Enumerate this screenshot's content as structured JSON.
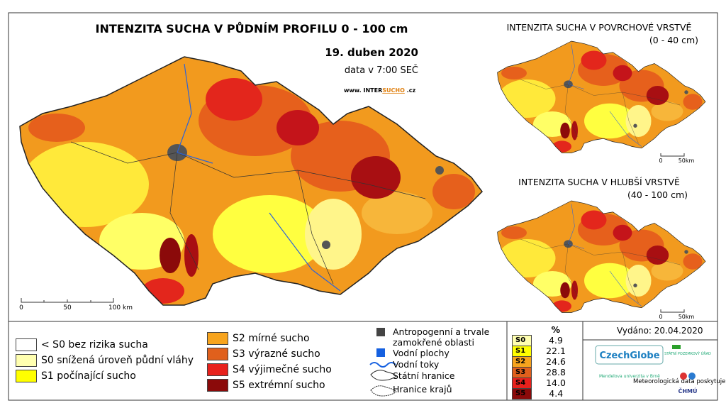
{
  "header": {
    "title": "INTENZITA SUCHA V PŮDNÍM PROFILU 0 - 100 cm",
    "date": "19. duben 2020",
    "time": "data v 7:00 SEČ",
    "website": {
      "prefix": "www. INTER",
      "highlight": "SUCHO",
      "suffix": ".cz"
    }
  },
  "main_scale": [
    "0",
    "50",
    "100 km"
  ],
  "insets": [
    {
      "title": "INTENZITA SUCHA V POVRCHOVÉ VRSTVĚ",
      "subtitle": "(0 - 40 cm)",
      "scale": [
        "0",
        "50km"
      ]
    },
    {
      "title": "INTENZITA SUCHA V HLUBŠÍ VRSTVĚ",
      "subtitle": "(40 - 100 cm)",
      "scale": [
        "0",
        "50km"
      ]
    }
  ],
  "legend": [
    "< S0 bez rizika sucha",
    "S0 snížená úroveň půdní vláhy",
    "S1 počínající sucho",
    "S2 mírné sucho",
    "S3 výrazné sucho",
    "S4 výjimečné sucho",
    "S5 extrémní sucho"
  ],
  "symbols": [
    "Antropogenní a trvale zamokřené oblasti",
    "Vodní plochy",
    "Vodní toky",
    "Státní hranice",
    "Hranice krajů"
  ],
  "table": {
    "header": "%",
    "rows": [
      [
        "S0",
        "4.9"
      ],
      [
        "S1",
        "22.1"
      ],
      [
        "S2",
        "24.6"
      ],
      [
        "S3",
        "28.8"
      ],
      [
        "S4",
        "14.0"
      ],
      [
        "S5",
        "4.4"
      ]
    ]
  },
  "issued": "Vydáno: 20.04.2020",
  "logos": {
    "czechglobe": "CzechGlobe",
    "spu": "STÁTNÍ POZEMKOVÝ ÚŘAD",
    "mendel": "Mendelova univerzita v Brně",
    "data_provider": "Meteorologická data poskytuje:",
    "chmu": "ČHMÚ"
  }
}
